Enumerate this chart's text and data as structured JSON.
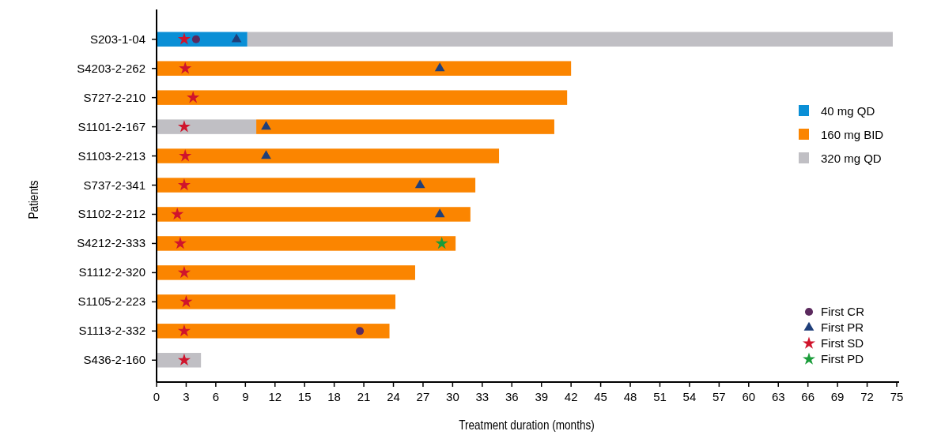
{
  "chart_data": {
    "type": "bar",
    "orientation": "horizontal",
    "xlabel": "Treatment duration (months)",
    "ylabel": "Patients",
    "categories": [
      "S203-1-04",
      "S4203-2-262",
      "S727-2-210",
      "S1101-2-167",
      "S1103-2-213",
      "S737-2-341",
      "S1102-2-212",
      "S4212-2-333",
      "S1112-2-320",
      "S1105-2-223",
      "S1113-2-332",
      "S436-2-160"
    ],
    "series": [
      {
        "name": "40 mg QD",
        "color": "#0a8fd6",
        "base": [
          0,
          null,
          null,
          null,
          null,
          null,
          null,
          null,
          null,
          null,
          null,
          null
        ],
        "values": [
          9.2,
          null,
          null,
          null,
          null,
          null,
          null,
          null,
          null,
          null,
          null,
          null
        ]
      },
      {
        "name": "160 mg BID",
        "color": "#fb8500",
        "base": [
          null,
          0,
          0,
          10.1,
          0,
          0,
          0,
          0,
          0,
          0,
          0,
          null
        ],
        "values": [
          null,
          42.0,
          41.6,
          30.2,
          34.7,
          32.3,
          31.8,
          30.3,
          26.2,
          24.2,
          23.6,
          null
        ]
      },
      {
        "name": "320 mg QD",
        "color": "#c0bfc4",
        "base": [
          9.2,
          null,
          null,
          0,
          null,
          null,
          null,
          null,
          null,
          null,
          null,
          0
        ],
        "values": [
          65.4,
          null,
          null,
          10.1,
          null,
          null,
          null,
          null,
          null,
          null,
          null,
          4.5
        ]
      },
      {
        "name": "First CR",
        "type": "scatter",
        "marker": "circle",
        "color": "#5b2a5e",
        "x": [
          "S203-1-04",
          "S1113-2-332"
        ],
        "values": [
          4.0,
          20.6
        ]
      },
      {
        "name": "First PR",
        "type": "scatter",
        "marker": "triangle",
        "color": "#1f3f7a",
        "x": [
          "S203-1-04",
          "S4203-2-262",
          "S1101-2-167",
          "S1103-2-213",
          "S737-2-341",
          "S1102-2-212"
        ],
        "values": [
          8.1,
          28.7,
          11.1,
          11.1,
          26.7,
          28.7
        ]
      },
      {
        "name": "First SD",
        "type": "scatter",
        "marker": "star",
        "color": "#d0142c",
        "x": [
          "S203-1-04",
          "S4203-2-262",
          "S727-2-210",
          "S1101-2-167",
          "S1103-2-213",
          "S737-2-341",
          "S1102-2-212",
          "S4212-2-333",
          "S1112-2-320",
          "S1105-2-223",
          "S1113-2-332",
          "S436-2-160"
        ],
        "values": [
          2.8,
          2.9,
          3.7,
          2.8,
          2.9,
          2.8,
          2.1,
          2.4,
          2.8,
          3.0,
          2.8,
          2.8
        ]
      },
      {
        "name": "First PD",
        "type": "scatter",
        "marker": "star",
        "color": "#1a9c3a",
        "x": [
          "S4212-2-333"
        ],
        "values": [
          28.9
        ]
      }
    ],
    "xlim": [
      0,
      75
    ],
    "xticks": [
      0,
      3,
      6,
      9,
      12,
      15,
      18,
      21,
      24,
      27,
      30,
      33,
      36,
      39,
      42,
      45,
      48,
      51,
      54,
      57,
      60,
      63,
      66,
      69,
      72,
      75
    ],
    "grid": false,
    "legend": "right"
  }
}
